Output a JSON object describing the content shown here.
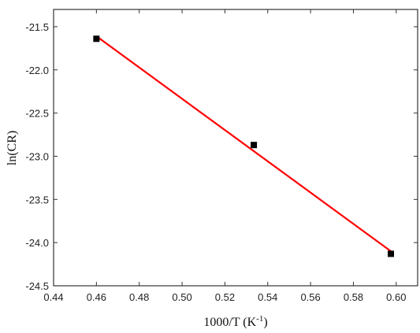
{
  "chart_data": {
    "type": "scatter",
    "xlabel": "1000/T (K",
    "xlabel_sup": "-1",
    "xlabel_suffix": ")",
    "ylabel": "ln(CR)",
    "xlim": [
      0.44,
      0.61
    ],
    "ylim": [
      -24.5,
      -21.3
    ],
    "x_ticks": [
      0.44,
      0.46,
      0.48,
      0.5,
      0.52,
      0.54,
      0.56,
      0.58,
      0.6
    ],
    "x_tick_labels": [
      "0.44",
      "0.46",
      "0.48",
      "0.50",
      "0.52",
      "0.54",
      "0.56",
      "0.58",
      "0.60"
    ],
    "y_ticks": [
      -21.5,
      -22.0,
      -22.5,
      -23.0,
      -23.5,
      -24.0,
      -24.5
    ],
    "y_tick_labels": [
      "-21.5",
      "-22.0",
      "-22.5",
      "-23.0",
      "-23.5",
      "-24.0",
      "-24.5"
    ],
    "series": [
      {
        "kind": "points",
        "marker": "square",
        "color": "#000000",
        "x": [
          0.46,
          0.5335,
          0.5975
        ],
        "y": [
          -21.64,
          -22.87,
          -24.13
        ]
      },
      {
        "kind": "fit-line",
        "color": "#ff0000",
        "x": [
          0.46,
          0.5975
        ],
        "y": [
          -21.61,
          -24.1
        ]
      }
    ],
    "grid": false,
    "legend": "none"
  }
}
